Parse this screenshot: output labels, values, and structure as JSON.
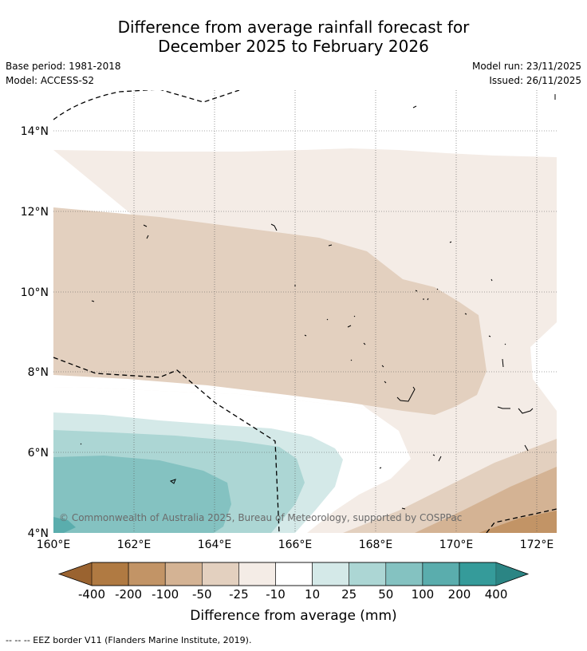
{
  "title": {
    "line1": "Difference from average rainfall forecast for",
    "line2": "December 2025 to February 2026"
  },
  "meta_left": {
    "base_period": "Base period: 1981-2018",
    "model": "Model: ACCESS-S2"
  },
  "meta_right": {
    "model_run": "Model run: 23/11/2025",
    "issued": "Issued: 26/11/2025"
  },
  "map": {
    "lat_ticks": [
      "14°N",
      "12°N",
      "10°N",
      "8°N",
      "6°N",
      "4°N"
    ],
    "lon_ticks": [
      "160°E",
      "162°E",
      "164°E",
      "166°E",
      "168°E",
      "170°E",
      "172°E"
    ],
    "copyright": "© Commonwealth of Australia 2025, Bureau of Meteorology, supported by COSPPac"
  },
  "legend": {
    "title": "Difference from average (mm)",
    "ticks": [
      "-400",
      "-200",
      "-100",
      "-50",
      "-25",
      "-10",
      "10",
      "25",
      "50",
      "100",
      "200",
      "400"
    ],
    "colors": [
      "#9a6330",
      "#b07a42",
      "#c29466",
      "#d4b394",
      "#e3d0bf",
      "#f4ece6",
      "#ffffff",
      "#d4e9e8",
      "#acd6d4",
      "#84c2c1",
      "#5aadad",
      "#359b9a",
      "#2b8584"
    ]
  },
  "footnote": "--  --  -- EEZ border V11 (Flanders Marine Institute, 2019)."
}
